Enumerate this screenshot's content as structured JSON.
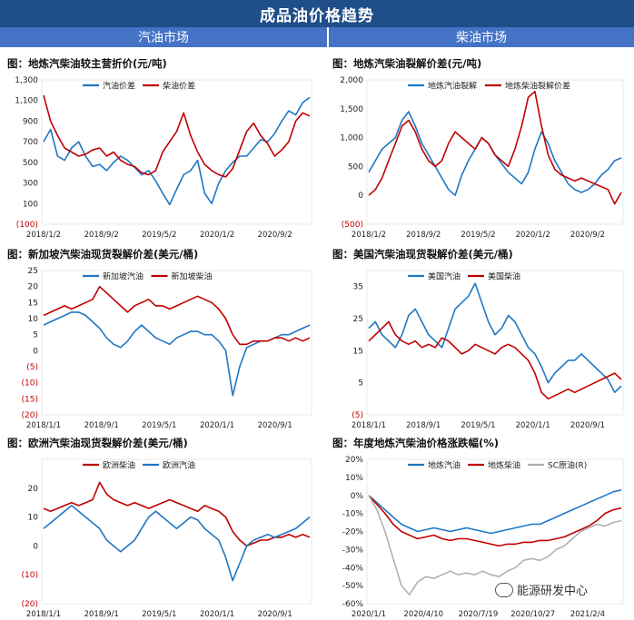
{
  "header": {
    "title": "成品油价格趋势"
  },
  "sections": {
    "left": "汽油市场",
    "right": "柴油市场"
  },
  "watermark": "能源研发中心",
  "chart_data": [
    {
      "id": "c1",
      "type": "line",
      "title": "图：地炼汽柴油较主营折价(元/吨)",
      "yticks": [
        "1,300",
        "1,100",
        "900",
        "700",
        "500",
        "300",
        "100",
        "(100)"
      ],
      "ytick_values": [
        1300,
        1100,
        900,
        700,
        500,
        300,
        100,
        -100
      ],
      "ylim": [
        -100,
        1300
      ],
      "xticks": [
        "2018/1/2",
        "2018/9/2",
        "2019/5/2",
        "2020/1/2",
        "2020/9/2"
      ],
      "series": [
        {
          "name": "汽油价差",
          "color": "#1f77c4",
          "values": [
            700,
            820,
            560,
            520,
            640,
            700,
            560,
            460,
            480,
            420,
            500,
            560,
            520,
            450,
            380,
            420,
            320,
            200,
            90,
            240,
            380,
            420,
            520,
            200,
            100,
            300,
            420,
            500,
            560,
            560,
            640,
            720,
            700,
            780,
            900,
            1000,
            960,
            1080,
            1130
          ]
        },
        {
          "name": "柴油价差",
          "color": "#c00000",
          "values": [
            1150,
            900,
            760,
            640,
            600,
            560,
            580,
            620,
            640,
            560,
            600,
            520,
            480,
            460,
            400,
            380,
            420,
            600,
            700,
            800,
            980,
            760,
            600,
            480,
            420,
            380,
            360,
            440,
            620,
            800,
            880,
            760,
            680,
            560,
            620,
            700,
            900,
            980,
            950
          ]
        }
      ]
    },
    {
      "id": "c2",
      "type": "line",
      "title": "图：地炼汽柴油裂解价差(元/吨)",
      "yticks": [
        "2,000",
        "1,500",
        "1,000",
        "500",
        "0",
        "(500)"
      ],
      "ytick_values": [
        2000,
        1500,
        1000,
        500,
        0,
        -500
      ],
      "ylim": [
        -500,
        2000
      ],
      "xticks": [
        "2018/1/2",
        "2018/9/2",
        "2019/5/2",
        "2020/1/2",
        "2020/9/2"
      ],
      "series": [
        {
          "name": "地炼汽油裂解",
          "color": "#1f77c4",
          "values": [
            400,
            600,
            800,
            900,
            1000,
            1300,
            1450,
            1200,
            900,
            700,
            500,
            300,
            100,
            0,
            350,
            600,
            800,
            1000,
            900,
            700,
            550,
            400,
            300,
            200,
            400,
            800,
            1100,
            900,
            600,
            400,
            200,
            100,
            50,
            100,
            200,
            350,
            450,
            600,
            650
          ]
        },
        {
          "name": "地炼柴油裂解价差",
          "color": "#c00000",
          "values": [
            0,
            100,
            300,
            600,
            900,
            1200,
            1300,
            1100,
            800,
            600,
            500,
            600,
            900,
            1100,
            1000,
            900,
            800,
            1000,
            900,
            700,
            600,
            500,
            800,
            1200,
            1700,
            1800,
            1200,
            700,
            450,
            350,
            300,
            250,
            300,
            250,
            200,
            150,
            100,
            -150,
            50
          ]
        }
      ]
    },
    {
      "id": "c3",
      "type": "line",
      "title": "图：新加坡汽柴油现货裂解价差(美元/桶)",
      "yticks": [
        "25",
        "20",
        "15",
        "10",
        "5",
        "0",
        "(5)",
        "(10)",
        "(15)",
        "(20)"
      ],
      "ytick_values": [
        25,
        20,
        15,
        10,
        5,
        0,
        -5,
        -10,
        -15,
        -20
      ],
      "ylim": [
        -20,
        25
      ],
      "xticks": [
        "2018/1/1",
        "2018/9/1",
        "2019/5/1",
        "2020/1/1",
        "2020/9/1"
      ],
      "series": [
        {
          "name": "新加坡汽油",
          "color": "#1f77c4",
          "values": [
            8,
            9,
            10,
            11,
            12,
            12,
            11,
            9,
            7,
            4,
            2,
            1,
            3,
            6,
            8,
            6,
            4,
            3,
            2,
            4,
            5,
            6,
            6,
            5,
            5,
            3,
            0,
            -14,
            -5,
            1,
            2,
            3,
            3,
            4,
            5,
            5,
            6,
            7,
            8
          ]
        },
        {
          "name": "新加坡柴油",
          "color": "#c00000",
          "values": [
            11,
            12,
            13,
            14,
            13,
            14,
            15,
            16,
            20,
            18,
            16,
            14,
            12,
            14,
            15,
            16,
            14,
            14,
            13,
            14,
            15,
            16,
            17,
            16,
            15,
            13,
            10,
            5,
            2,
            2,
            3,
            3,
            3,
            4,
            4,
            3,
            4,
            3,
            4
          ]
        }
      ]
    },
    {
      "id": "c4",
      "type": "line",
      "title": "图：美国汽柴油现货裂解价差(美元/桶)",
      "yticks": [
        "35",
        "25",
        "15",
        "5",
        "(5)"
      ],
      "ytick_values": [
        35,
        25,
        15,
        5,
        -5
      ],
      "ylim": [
        -5,
        40
      ],
      "xticks": [
        "2018/1/1",
        "2018/9/1",
        "2019/5/1",
        "2020/1/1",
        "2020/9/1"
      ],
      "series": [
        {
          "name": "美国汽油",
          "color": "#1f77c4",
          "values": [
            22,
            24,
            20,
            18,
            16,
            20,
            26,
            28,
            24,
            20,
            18,
            16,
            22,
            28,
            30,
            32,
            36,
            30,
            24,
            20,
            22,
            26,
            24,
            20,
            16,
            14,
            10,
            5,
            8,
            10,
            12,
            12,
            14,
            12,
            10,
            8,
            6,
            2,
            4
          ]
        },
        {
          "name": "美国柴油",
          "color": "#c00000",
          "values": [
            18,
            20,
            22,
            24,
            20,
            18,
            17,
            18,
            16,
            17,
            16,
            19,
            18,
            16,
            14,
            15,
            17,
            16,
            15,
            14,
            16,
            17,
            16,
            14,
            12,
            8,
            2,
            0,
            1,
            2,
            3,
            2,
            3,
            4,
            5,
            6,
            7,
            8,
            6
          ]
        }
      ]
    },
    {
      "id": "c5",
      "type": "line",
      "title": "图：欧洲汽柴油现货裂解价差(美元/桶)",
      "yticks": [
        "20",
        "10",
        "0",
        "(10)",
        "(20)"
      ],
      "ytick_values": [
        20,
        10,
        0,
        -10,
        -20
      ],
      "ylim": [
        -20,
        30
      ],
      "xticks": [
        "2018/1/1",
        "2018/9/1",
        "2019/5/1",
        "2020/1/1",
        "2020/9/1"
      ],
      "series": [
        {
          "name": "欧洲柴油",
          "color": "#c00000",
          "values": [
            13,
            12,
            13,
            14,
            15,
            14,
            15,
            16,
            22,
            18,
            16,
            15,
            14,
            15,
            14,
            13,
            14,
            15,
            16,
            15,
            14,
            13,
            12,
            14,
            13,
            12,
            10,
            5,
            2,
            0,
            1,
            2,
            2,
            3,
            3,
            4,
            3,
            4,
            3
          ]
        },
        {
          "name": "欧洲汽油",
          "color": "#1f77c4",
          "values": [
            6,
            8,
            10,
            12,
            14,
            12,
            10,
            8,
            6,
            2,
            0,
            -2,
            0,
            2,
            6,
            10,
            12,
            10,
            8,
            6,
            8,
            10,
            9,
            6,
            4,
            2,
            -4,
            -12,
            -6,
            0,
            2,
            3,
            4,
            3,
            4,
            5,
            6,
            8,
            10
          ]
        }
      ]
    },
    {
      "id": "c6",
      "type": "line",
      "title": "图：年度地炼汽柴油价格涨跌幅(%)",
      "yticks": [
        "20%",
        "10%",
        "0%",
        "-10%",
        "-20%",
        "-30%",
        "-40%",
        "-50%",
        "-60%"
      ],
      "ytick_values": [
        20,
        10,
        0,
        -10,
        -20,
        -30,
        -40,
        -50,
        -60
      ],
      "ylim": [
        -60,
        20
      ],
      "xticks": [
        "2020/1/1",
        "2020/4/10",
        "2020/7/19",
        "2020/10/27",
        "2021/2/4"
      ],
      "series": [
        {
          "name": "地炼汽油",
          "color": "#1f77c4",
          "values": [
            0,
            -4,
            -8,
            -12,
            -16,
            -18,
            -20,
            -19,
            -18,
            -19,
            -20,
            -19,
            -18,
            -19,
            -20,
            -21,
            -20,
            -19,
            -18,
            -17,
            -16,
            -16,
            -14,
            -12,
            -10,
            -8,
            -6,
            -4,
            -2,
            0,
            2,
            3
          ]
        },
        {
          "name": "地炼柴油",
          "color": "#c00000",
          "values": [
            0,
            -5,
            -10,
            -16,
            -20,
            -22,
            -24,
            -23,
            -22,
            -24,
            -25,
            -24,
            -24,
            -25,
            -26,
            -27,
            -28,
            -27,
            -27,
            -26,
            -26,
            -25,
            -25,
            -24,
            -23,
            -21,
            -19,
            -17,
            -14,
            -10,
            -8,
            -7
          ]
        },
        {
          "name": "SC原油(R)",
          "color": "#b0b0b0",
          "values": [
            0,
            -8,
            -20,
            -35,
            -50,
            -55,
            -48,
            -45,
            -46,
            -44,
            -42,
            -44,
            -43,
            -44,
            -42,
            -44,
            -45,
            -42,
            -40,
            -36,
            -35,
            -36,
            -34,
            -30,
            -28,
            -24,
            -20,
            -18,
            -16,
            -17,
            -15,
            -14
          ]
        }
      ]
    }
  ]
}
